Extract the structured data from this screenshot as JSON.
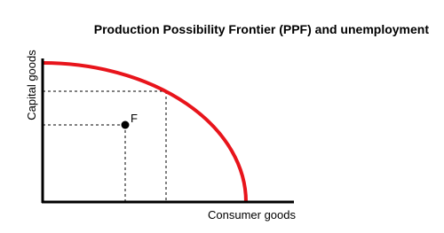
{
  "title": "Production Possibility Frontier (PPF) and unemployment",
  "y_axis_label": "Capital goods",
  "x_axis_label": "Consumer goods",
  "point_label": "F"
}
